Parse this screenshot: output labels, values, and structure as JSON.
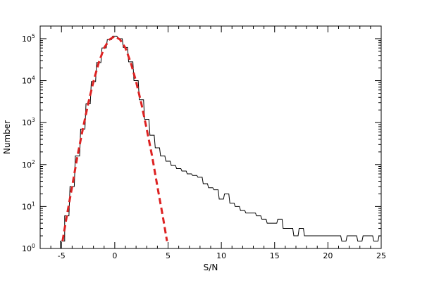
{
  "chart_data": {
    "type": "line",
    "title": "",
    "xlabel": "S/N",
    "ylabel": "Number",
    "xlim": [
      -7,
      25
    ],
    "ylim": [
      1,
      200000
    ],
    "yscale": "log",
    "grid": false,
    "legend": "none",
    "x_ticks": [
      {
        "value": -5,
        "label": "-5"
      },
      {
        "value": 0,
        "label": "0"
      },
      {
        "value": 5,
        "label": "5"
      },
      {
        "value": 10,
        "label": "10"
      },
      {
        "value": 15,
        "label": "15"
      },
      {
        "value": 20,
        "label": "20"
      },
      {
        "value": 25,
        "label": "25"
      }
    ],
    "y_ticks": [
      {
        "value": 1,
        "base": "10",
        "exp": "0"
      },
      {
        "value": 10,
        "base": "10",
        "exp": "1"
      },
      {
        "value": 100,
        "base": "10",
        "exp": "2"
      },
      {
        "value": 1000,
        "base": "10",
        "exp": "3"
      },
      {
        "value": 10000,
        "base": "10",
        "exp": "4"
      },
      {
        "value": 100000,
        "base": "10",
        "exp": "5"
      }
    ],
    "series": [
      {
        "style": "histogram",
        "color": "#000000",
        "x": [
          -4.9,
          -4.5,
          -4.0,
          -3.5,
          -3.0,
          -2.5,
          -2.0,
          -1.5,
          -1.0,
          -0.5,
          0.0,
          0.5,
          1.0,
          1.5,
          2.0,
          2.5,
          3.0,
          3.5,
          4.0,
          4.5,
          5.0,
          5.5,
          6.0,
          6.5,
          7.0,
          7.5,
          8.0,
          8.5,
          9.0,
          9.5,
          10.0,
          10.5,
          11.0,
          11.5,
          12.0,
          12.5,
          13.0,
          13.5,
          14.0,
          14.5,
          15.0,
          15.5,
          16.0,
          16.5,
          17.0,
          17.5,
          18.0,
          18.5,
          19.0,
          19.5,
          20.0,
          20.5,
          21.0,
          21.5,
          22.0,
          22.5,
          23.0,
          23.5,
          24.0,
          24.5,
          25.0
        ],
        "y": [
          1.5,
          6,
          30,
          160,
          700,
          2800,
          9500,
          27000,
          60000,
          95000,
          115000,
          100000,
          62000,
          28000,
          10000,
          3500,
          1200,
          500,
          250,
          160,
          120,
          95,
          80,
          70,
          60,
          55,
          50,
          35,
          28,
          25,
          15,
          20,
          12,
          10,
          8,
          7,
          7,
          6,
          5,
          4,
          4,
          5,
          3,
          3,
          2,
          3,
          2,
          2,
          2,
          2,
          2,
          2,
          2,
          1.5,
          2,
          2,
          1.5,
          2,
          2,
          1.5,
          2
        ]
      },
      {
        "style": "dashed",
        "color": "#dd2222",
        "x": [
          -4.9,
          -4.5,
          -4.0,
          -3.5,
          -3.0,
          -2.5,
          -2.0,
          -1.5,
          -1.0,
          -0.5,
          0.0,
          0.5,
          1.0,
          1.5,
          2.0,
          2.5,
          3.0,
          3.5,
          4.0,
          4.5,
          4.9
        ],
        "y": [
          1.5,
          6,
          30,
          160,
          700,
          2800,
          9500,
          27000,
          60000,
          95000,
          115000,
          95000,
          60000,
          27000,
          9500,
          2800,
          700,
          160,
          30,
          6,
          1.5
        ]
      }
    ]
  }
}
